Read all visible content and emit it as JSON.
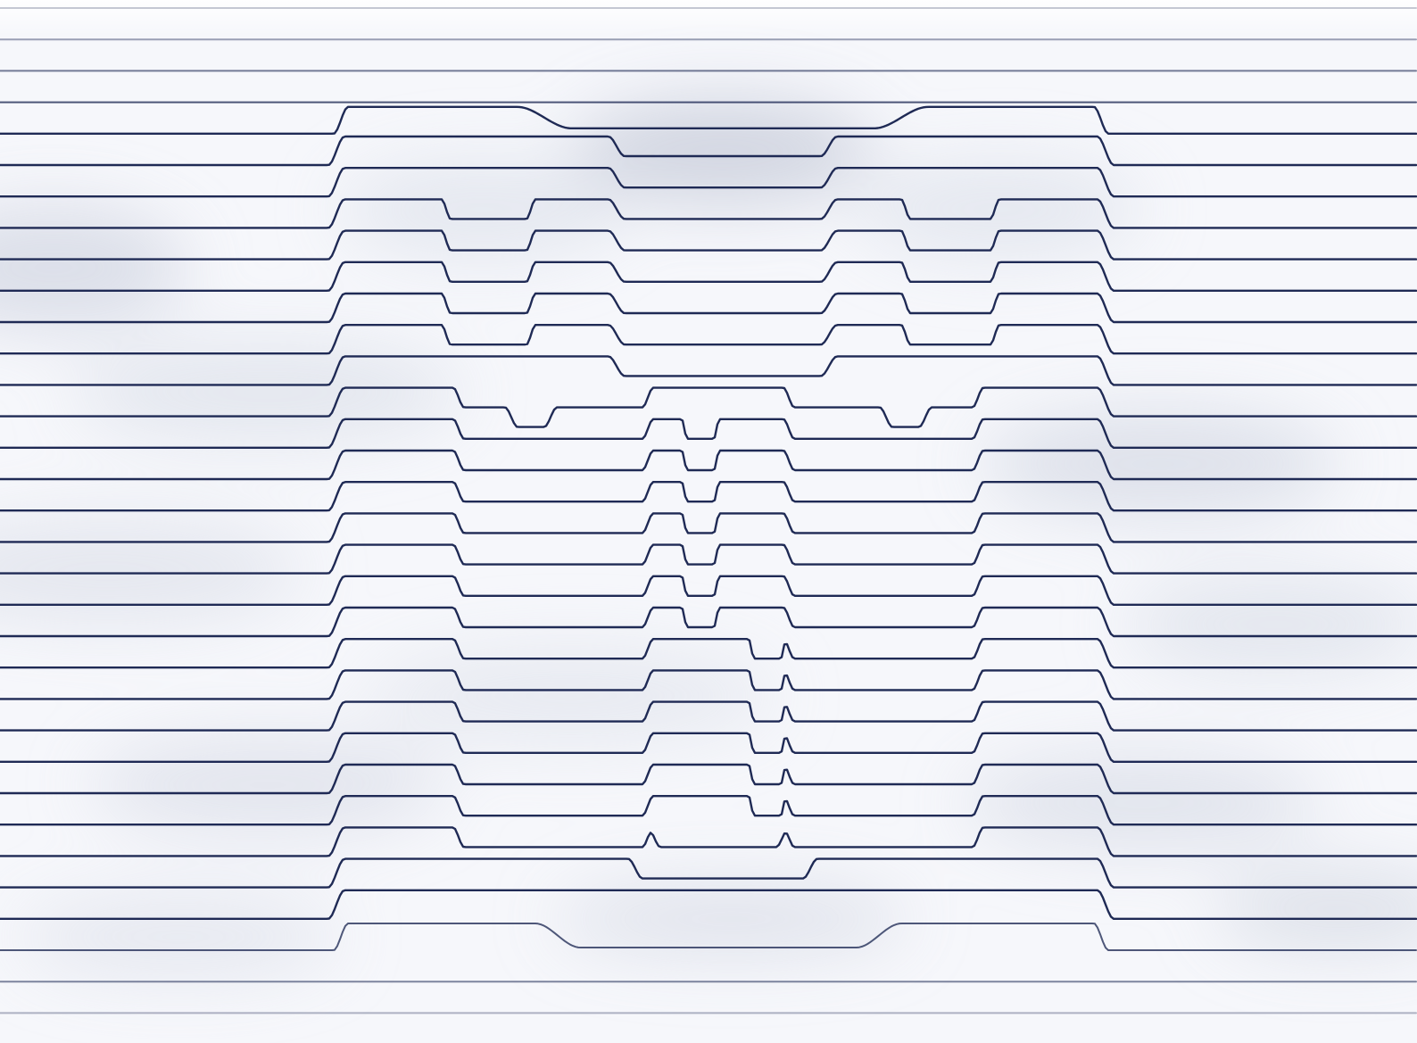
{
  "artwork": {
    "style": "3D op-art line illusion",
    "line_color": "#1f2a55",
    "background_color": "#ffffff",
    "shadow_color": "#c9cedd"
  }
}
